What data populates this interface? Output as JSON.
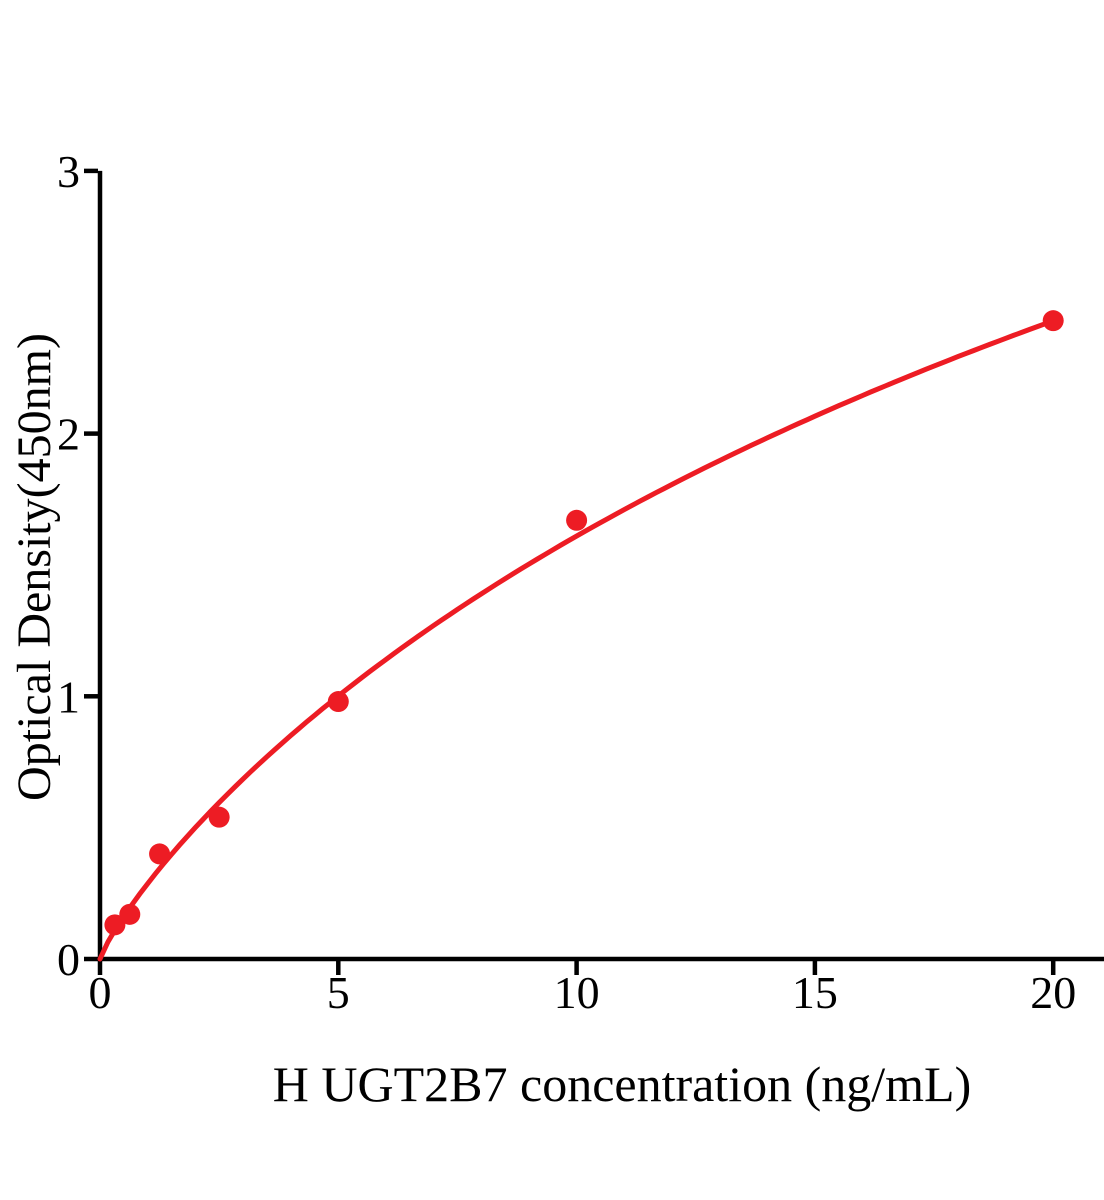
{
  "figure": {
    "background": "#ffffff",
    "description": "ELISA standard curve plot"
  },
  "chart_data": {
    "type": "scatter",
    "title": "",
    "xlabel": "H UGT2B7 concentration (ng/mL)",
    "ylabel": "Optical Density(450nm)",
    "x": [
      0.313,
      0.625,
      1.25,
      2.5,
      5,
      10,
      20
    ],
    "y": [
      0.13,
      0.17,
      0.4,
      0.54,
      0.98,
      1.67,
      2.43
    ],
    "x_ticks": [
      0,
      5,
      10,
      15,
      20
    ],
    "y_ticks": [
      0,
      1,
      2,
      3
    ],
    "xlim": [
      0,
      21.1
    ],
    "ylim": [
      0,
      3
    ],
    "grid": false,
    "legend": "none",
    "point_color": "#ED1C24",
    "curve_color": "#ED1C24",
    "axis_color": "#000000",
    "fit_curve": {
      "model": "hill",
      "vmax": 6.64,
      "k": 22.12,
      "n": 0.85,
      "x_range": [
        0,
        20
      ]
    }
  }
}
